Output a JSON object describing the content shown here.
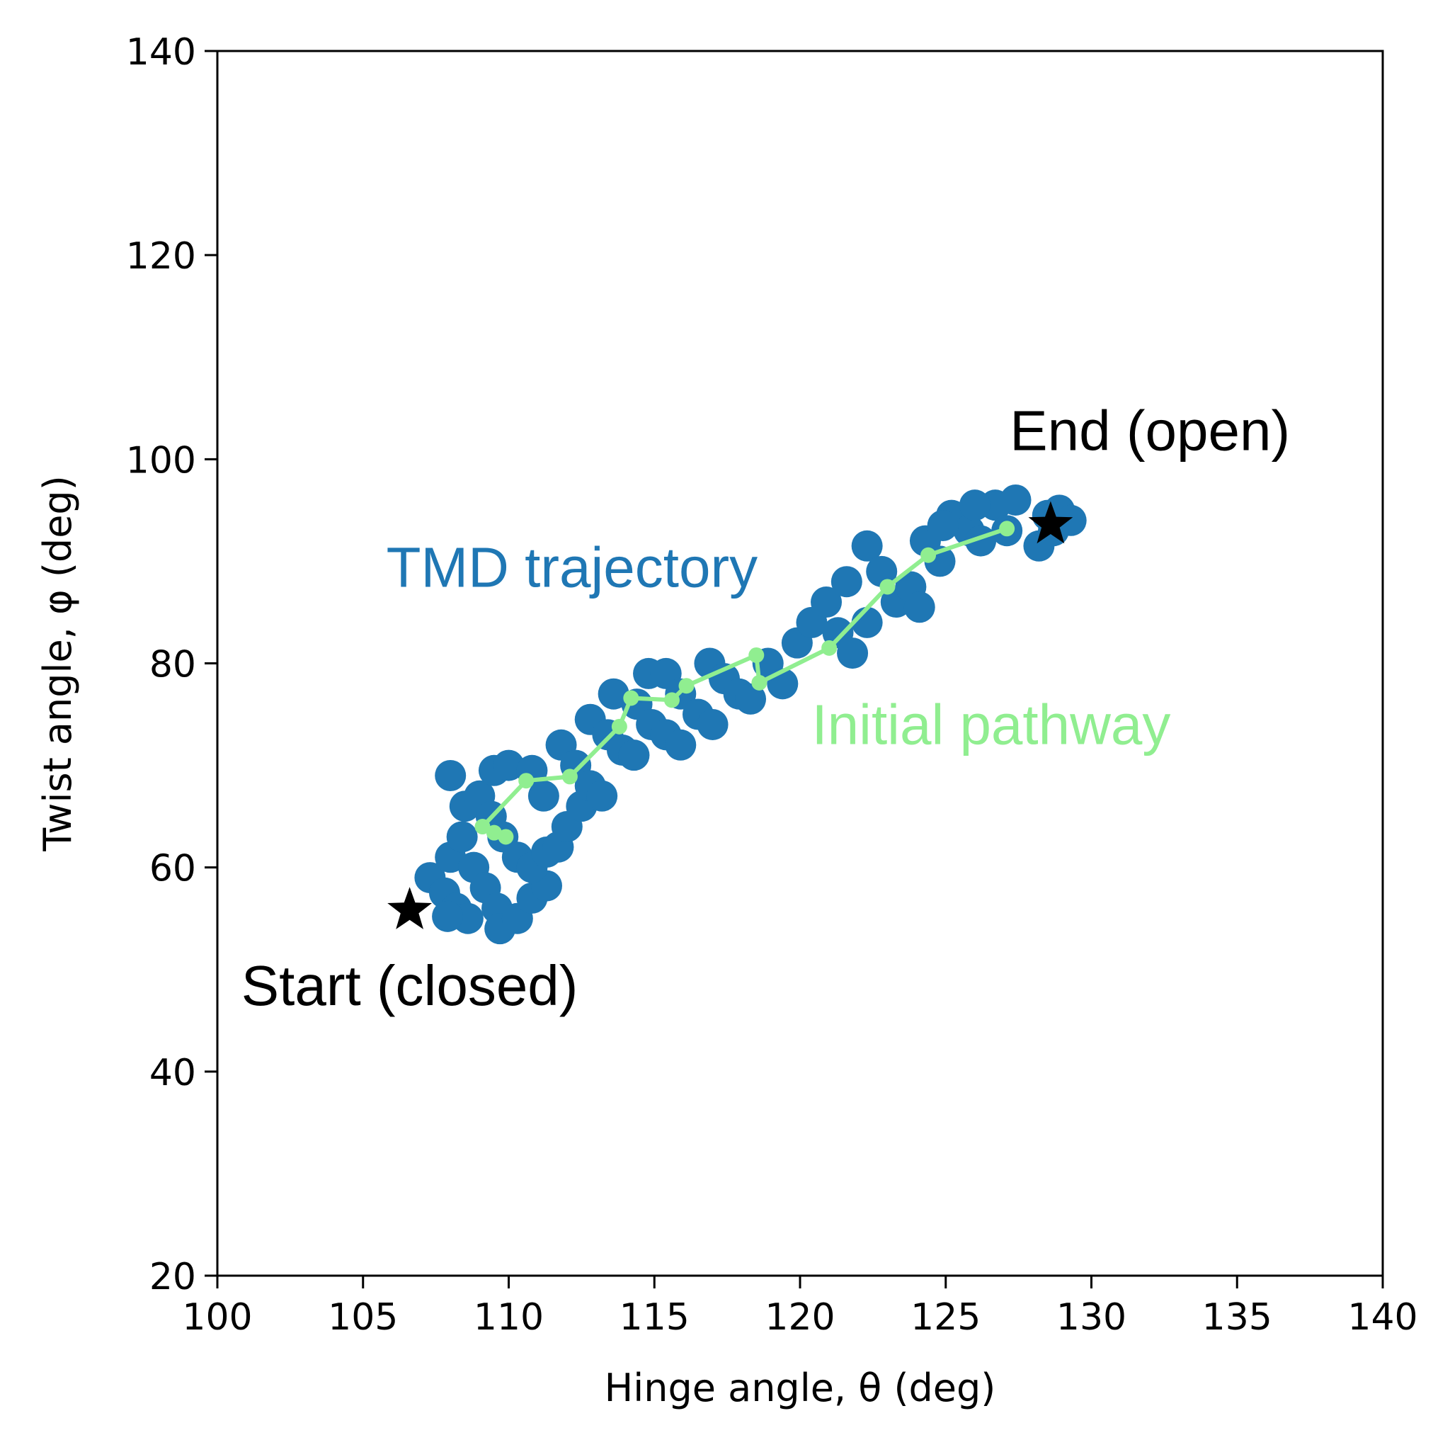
{
  "chart_data": {
    "type": "scatter",
    "xlabel": "Hinge angle, θ (deg)",
    "ylabel": "Twist angle, φ (deg)",
    "xlim": [
      100,
      140
    ],
    "ylim": [
      20,
      140
    ],
    "xticks": [
      100,
      105,
      110,
      115,
      120,
      125,
      130,
      135,
      140
    ],
    "yticks": [
      20,
      40,
      60,
      80,
      100,
      120,
      140
    ],
    "grid": false,
    "colors": {
      "trajectory": "#1f77b4",
      "pathway": "#90ee90",
      "markers": "#000000"
    },
    "series": [
      {
        "name": "TMD trajectory",
        "kind": "scatter",
        "points": [
          [
            107.3,
            59.0
          ],
          [
            107.8,
            57.5
          ],
          [
            108.2,
            56.0
          ],
          [
            108.6,
            55.0
          ],
          [
            107.9,
            55.2
          ],
          [
            108.0,
            61.0
          ],
          [
            108.4,
            63.0
          ],
          [
            108.8,
            60.0
          ],
          [
            109.2,
            58.0
          ],
          [
            109.6,
            56.0
          ],
          [
            109.7,
            54.0
          ],
          [
            110.3,
            55.0
          ],
          [
            110.8,
            57.0
          ],
          [
            111.3,
            58.2
          ],
          [
            108.5,
            66.0
          ],
          [
            109.0,
            67.0
          ],
          [
            109.4,
            65.0
          ],
          [
            109.8,
            63.0
          ],
          [
            110.3,
            61.0
          ],
          [
            110.8,
            60.0
          ],
          [
            111.3,
            61.5
          ],
          [
            111.7,
            62.0
          ],
          [
            112.0,
            64.0
          ],
          [
            112.5,
            66.0
          ],
          [
            108.0,
            69.0
          ],
          [
            109.5,
            69.5
          ],
          [
            110.0,
            70.0
          ],
          [
            110.8,
            69.5
          ],
          [
            111.2,
            67.0
          ],
          [
            111.8,
            72.0
          ],
          [
            112.3,
            70.0
          ],
          [
            112.8,
            68.0
          ],
          [
            113.2,
            67.0
          ],
          [
            112.8,
            74.5
          ],
          [
            113.4,
            73.0
          ],
          [
            113.9,
            71.5
          ],
          [
            114.3,
            71.0
          ],
          [
            113.6,
            77.0
          ],
          [
            114.4,
            76.0
          ],
          [
            114.9,
            74.0
          ],
          [
            115.4,
            73.0
          ],
          [
            115.9,
            72.0
          ],
          [
            114.8,
            79.0
          ],
          [
            115.4,
            79.0
          ],
          [
            115.9,
            77.0
          ],
          [
            116.5,
            75.0
          ],
          [
            117.0,
            74.0
          ],
          [
            116.9,
            80.0
          ],
          [
            117.4,
            78.5
          ],
          [
            117.9,
            77.0
          ],
          [
            118.3,
            76.5
          ],
          [
            118.9,
            80.0
          ],
          [
            119.4,
            78.0
          ],
          [
            119.9,
            82.0
          ],
          [
            120.4,
            84.0
          ],
          [
            120.9,
            86.0
          ],
          [
            121.3,
            83.0
          ],
          [
            121.8,
            81.0
          ],
          [
            122.3,
            84.0
          ],
          [
            121.6,
            88.0
          ],
          [
            122.3,
            91.5
          ],
          [
            122.8,
            89.0
          ],
          [
            123.3,
            86.0
          ],
          [
            123.8,
            87.5
          ],
          [
            124.1,
            85.5
          ],
          [
            124.3,
            92.0
          ],
          [
            124.8,
            90.0
          ],
          [
            125.2,
            94.5
          ],
          [
            125.8,
            93.0
          ],
          [
            126.2,
            92.0
          ],
          [
            126.7,
            95.5
          ],
          [
            127.4,
            96.0
          ],
          [
            127.1,
            93.0
          ],
          [
            128.2,
            91.5
          ],
          [
            128.5,
            94.5
          ],
          [
            128.9,
            95.0
          ],
          [
            129.3,
            94.0
          ],
          [
            128.7,
            93.0
          ],
          [
            126.0,
            95.5
          ],
          [
            124.9,
            93.5
          ]
        ]
      },
      {
        "name": "Initial pathway",
        "kind": "line",
        "points": [
          [
            109.9,
            63.0
          ],
          [
            109.5,
            63.4
          ],
          [
            109.1,
            64.0
          ],
          [
            110.6,
            68.5
          ],
          [
            112.1,
            68.9
          ],
          [
            113.8,
            73.8
          ],
          [
            114.2,
            76.6
          ],
          [
            115.6,
            76.4
          ],
          [
            116.1,
            77.8
          ],
          [
            118.5,
            80.8
          ],
          [
            118.6,
            78.1
          ],
          [
            121.0,
            81.5
          ],
          [
            123.0,
            87.5
          ],
          [
            124.4,
            90.6
          ],
          [
            127.1,
            93.2
          ]
        ]
      },
      {
        "name": "Endpoints",
        "kind": "marker",
        "points": [
          [
            106.6,
            55.8
          ],
          [
            128.6,
            93.6
          ]
        ]
      }
    ],
    "annotations": [
      {
        "text": "Start (closed)",
        "x": 106.6,
        "y": 46.5
      },
      {
        "text": "End (open)",
        "x": 127.2,
        "y": 100.9
      },
      {
        "text": "TMD trajectory",
        "x": 105.8,
        "y": 87.5
      },
      {
        "text": "Initial pathway",
        "x": 120.4,
        "y": 72.1
      }
    ]
  }
}
